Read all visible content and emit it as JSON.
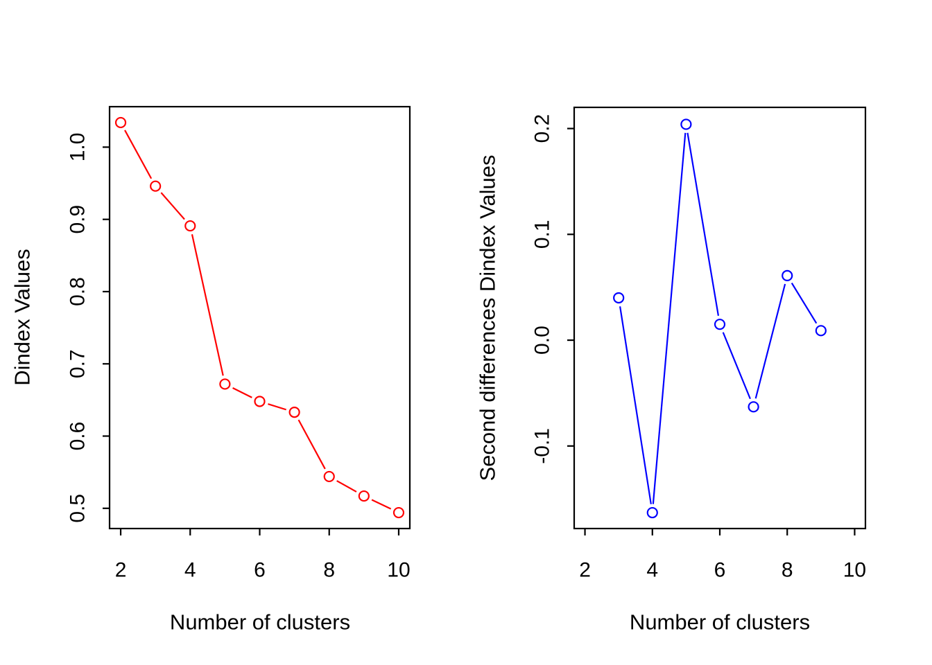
{
  "figure": {
    "background_color": "#ffffff",
    "text_color": "#000000",
    "axis_color": "#000000"
  },
  "chart_data": [
    {
      "type": "line",
      "panel": "left",
      "title": "",
      "xlabel": "Number of clusters",
      "ylabel": "Dindex Values",
      "series_name": "Dindex",
      "x": [
        2,
        3,
        4,
        5,
        6,
        7,
        8,
        9,
        10
      ],
      "values": [
        1.034,
        0.946,
        0.891,
        0.672,
        0.648,
        0.633,
        0.544,
        0.517,
        0.494
      ],
      "xlim": [
        1.68,
        10.32
      ],
      "ylim": [
        0.472,
        1.056
      ],
      "xticks": [
        2,
        4,
        6,
        8,
        10
      ],
      "xtick_labels": [
        "2",
        "4",
        "6",
        "8",
        "10"
      ],
      "yticks": [
        0.5,
        0.6,
        0.7,
        0.8,
        0.9,
        1.0
      ],
      "ytick_labels": [
        "0.5",
        "0.6",
        "0.7",
        "0.8",
        "0.9",
        "1.0"
      ],
      "color": "#ff0000",
      "marker": "open-circle",
      "line_style": "solid",
      "grid": false,
      "legend": null
    },
    {
      "type": "line",
      "panel": "right",
      "title": "",
      "xlabel": "Number of clusters",
      "ylabel": "Second differences Dindex Values",
      "series_name": "Second differences Dindex",
      "x": [
        3,
        4,
        5,
        6,
        7,
        8,
        9
      ],
      "values": [
        0.04,
        -0.163,
        0.204,
        0.015,
        -0.063,
        0.061,
        0.009
      ],
      "xlim": [
        1.68,
        10.32
      ],
      "ylim": [
        -0.178,
        0.22
      ],
      "xticks": [
        2,
        4,
        6,
        8,
        10
      ],
      "xtick_labels": [
        "2",
        "4",
        "6",
        "8",
        "10"
      ],
      "yticks": [
        -0.1,
        0.0,
        0.1,
        0.2
      ],
      "ytick_labels": [
        "-0.1",
        "0.0",
        "0.1",
        "0.2"
      ],
      "color": "#0000ff",
      "marker": "open-circle",
      "line_style": "solid",
      "grid": false,
      "legend": null
    }
  ]
}
